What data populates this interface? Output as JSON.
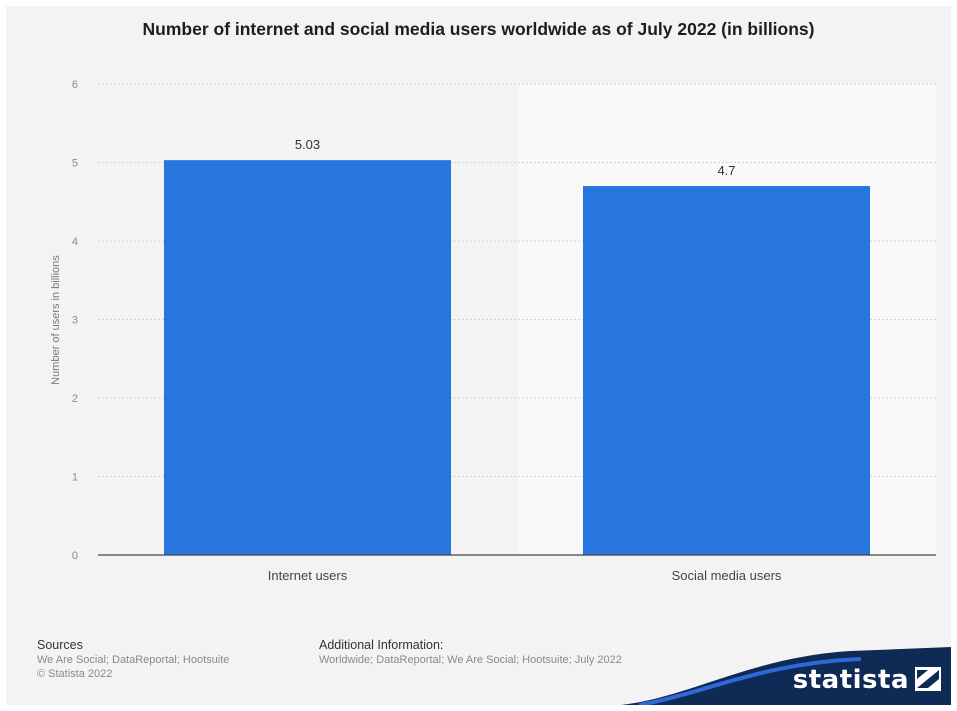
{
  "title": "Number of internet and social media users worldwide as of July 2022 (in billions)",
  "chart_data": {
    "type": "bar",
    "categories": [
      "Internet users",
      "Social media users"
    ],
    "values": [
      5.03,
      4.7
    ],
    "value_labels": [
      "5.03",
      "4.7"
    ],
    "title": "Number of internet and social media users worldwide as of July 2022 (in billions)",
    "xlabel": "",
    "ylabel": "Number of users in billions",
    "ylim": [
      0,
      6
    ],
    "yticks": [
      0,
      1,
      2,
      3,
      4,
      5,
      6
    ],
    "grid": true,
    "bar_color": "#2776dd",
    "legend": "none"
  },
  "footer": {
    "sources_heading": "Sources",
    "sources_text": "We Are Social; DataReportal; Hootsuite",
    "copyright": "© Statista 2022",
    "additional_heading": "Additional Information:",
    "additional_text": "Worldwide; DataReportal; We Are Social; Hootsuite; July 2022"
  },
  "brand": {
    "logo_text": "statista",
    "logo_icon": "statista-logo-icon",
    "logo_color": "#0f2a55"
  }
}
